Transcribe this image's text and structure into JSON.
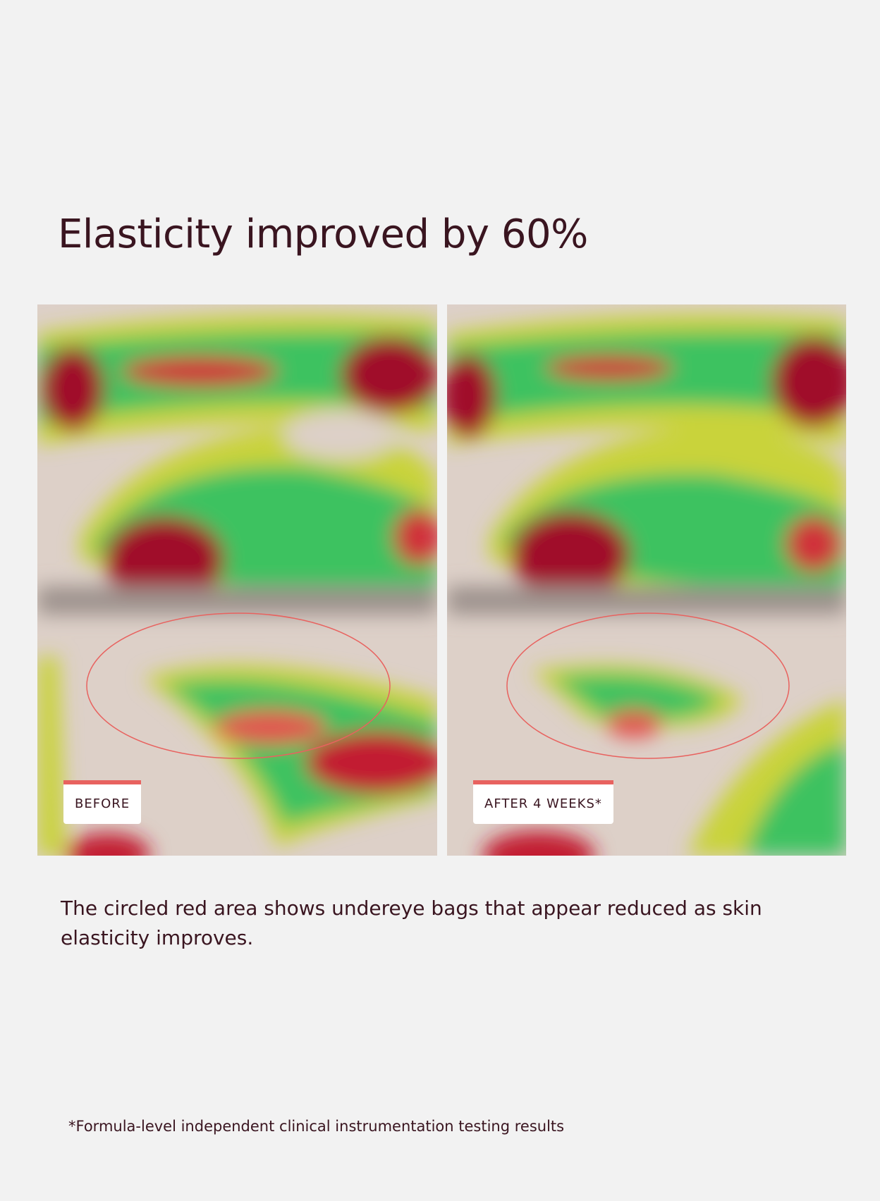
{
  "header": {
    "title": "Elasticity improved by 60%"
  },
  "images": [
    {
      "label": "BEFORE"
    },
    {
      "label": "AFTER 4 WEEKS*"
    }
  ],
  "caption": "The circled red area shows undereye bags that appear reduced as skin elasticity improves.",
  "footnote": "*Formula-level independent clinical instrumentation testing results"
}
